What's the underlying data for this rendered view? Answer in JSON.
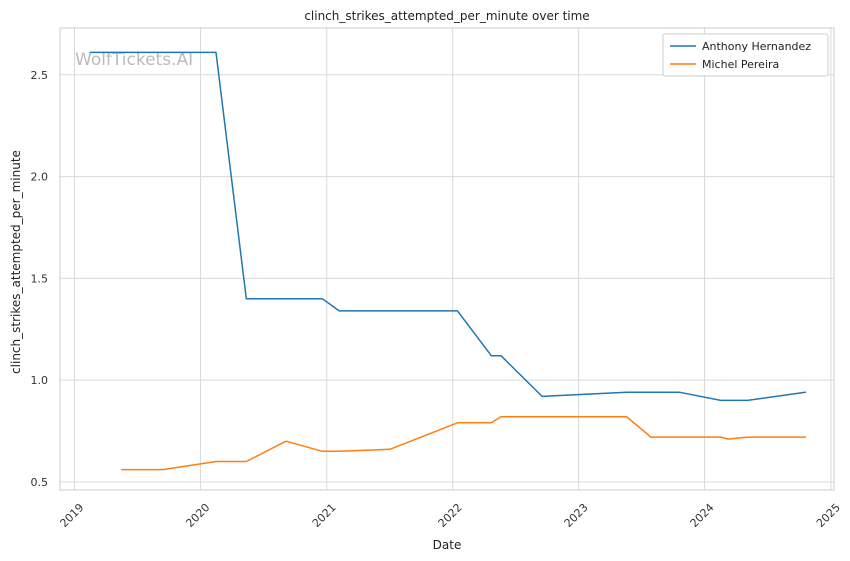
{
  "chart_data": {
    "type": "line",
    "title": "clinch_strikes_attempted_per_minute over time",
    "xlabel": "Date",
    "ylabel": "clinch_strikes_attempted_per_minute",
    "watermark": "WolfTickets.AI",
    "x_ticks": [
      "2019",
      "2020",
      "2021",
      "2022",
      "2023",
      "2024",
      "2025"
    ],
    "y_ticks": [
      "0.5",
      "1.0",
      "1.5",
      "2.0",
      "2.5"
    ],
    "xlim": [
      "2018-11-20",
      "2025-01-10"
    ],
    "ylim": [
      0.46,
      2.73
    ],
    "grid": true,
    "legend_position": "top-right",
    "series": [
      {
        "name": "Anthony Hernandez",
        "color": "#1f77b4",
        "points": [
          [
            "2019-02-16",
            2.61
          ],
          [
            "2020-02-15",
            2.61
          ],
          [
            "2020-05-13",
            1.4
          ],
          [
            "2020-12-19",
            1.4
          ],
          [
            "2021-02-06",
            1.34
          ],
          [
            "2022-01-15",
            1.34
          ],
          [
            "2022-04-23",
            1.12
          ],
          [
            "2022-05-21",
            1.12
          ],
          [
            "2022-09-17",
            0.92
          ],
          [
            "2023-05-20",
            0.94
          ],
          [
            "2023-10-21",
            0.94
          ],
          [
            "2024-02-17",
            0.9
          ],
          [
            "2024-05-04",
            0.9
          ],
          [
            "2024-10-19",
            0.94
          ]
        ]
      },
      {
        "name": "Michel Pereira",
        "color": "#ff7f0e",
        "points": [
          [
            "2019-05-18",
            0.56
          ],
          [
            "2019-09-14",
            0.56
          ],
          [
            "2020-02-15",
            0.6
          ],
          [
            "2020-05-13",
            0.6
          ],
          [
            "2020-09-05",
            0.7
          ],
          [
            "2020-12-19",
            0.65
          ],
          [
            "2021-02-06",
            0.65
          ],
          [
            "2021-07-03",
            0.66
          ],
          [
            "2022-01-15",
            0.79
          ],
          [
            "2022-04-23",
            0.79
          ],
          [
            "2022-05-21",
            0.82
          ],
          [
            "2023-05-20",
            0.82
          ],
          [
            "2023-07-29",
            0.72
          ],
          [
            "2024-02-17",
            0.72
          ],
          [
            "2024-03-09",
            0.71
          ],
          [
            "2024-05-04",
            0.72
          ],
          [
            "2024-10-19",
            0.72
          ]
        ]
      }
    ]
  }
}
